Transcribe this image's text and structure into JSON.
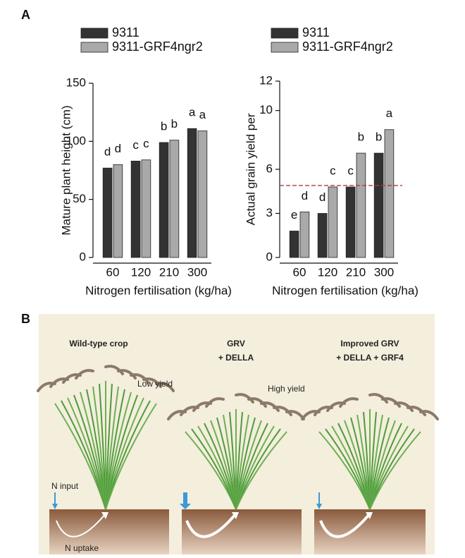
{
  "panel_labels": [
    "A",
    "B"
  ],
  "chart_data": [
    {
      "type": "bar",
      "ylabel": "Mature plant height (cm)",
      "xlabel": "Nitrogen fertilisation (kg/ha)",
      "categories": [
        "60",
        "120",
        "210",
        "300"
      ],
      "series": [
        {
          "name": "9311",
          "color": "#333333",
          "values": [
            77,
            83,
            99,
            111
          ],
          "labels": [
            "d",
            "c",
            "b",
            "a"
          ]
        },
        {
          "name": "9311-GRF4ngr2",
          "color": "#a9a9a9",
          "values": [
            80,
            84,
            101,
            109
          ],
          "labels": [
            "d",
            "c",
            "b",
            "a"
          ]
        }
      ],
      "ylim": [
        0,
        150
      ],
      "yticks": [
        0,
        50,
        100,
        150
      ]
    },
    {
      "type": "bar",
      "ylabel": "Actual grain yield per",
      "xlabel": "Nitrogen fertilisation (kg/ha)",
      "categories": [
        "60",
        "120",
        "210",
        "300"
      ],
      "series": [
        {
          "name": "9311",
          "color": "#333333",
          "values": [
            1.8,
            3.0,
            4.8,
            7.1
          ],
          "labels": [
            "e",
            "d",
            "c",
            "b"
          ]
        },
        {
          "name": "9311-GRF4ngr2",
          "color": "#a9a9a9",
          "values": [
            3.1,
            4.8,
            7.1,
            8.7
          ],
          "labels": [
            "d",
            "c",
            "b",
            "a"
          ]
        }
      ],
      "ylim": [
        0,
        12
      ],
      "yticks": [
        0,
        3,
        6,
        10,
        12
      ],
      "reference_line": {
        "value": 4.9,
        "color": "#b03a3a"
      }
    }
  ],
  "illustration": {
    "panels": [
      {
        "title": [
          "Wild-type crop"
        ],
        "yield": "Low yield"
      },
      {
        "title": [
          "GRV",
          "+ DELLA"
        ],
        "yield": "High yield"
      },
      {
        "title": [
          "Improved GRV",
          "+ DELLA + GRF4"
        ]
      }
    ],
    "n_input": "N input",
    "n_uptake": "N uptake"
  }
}
